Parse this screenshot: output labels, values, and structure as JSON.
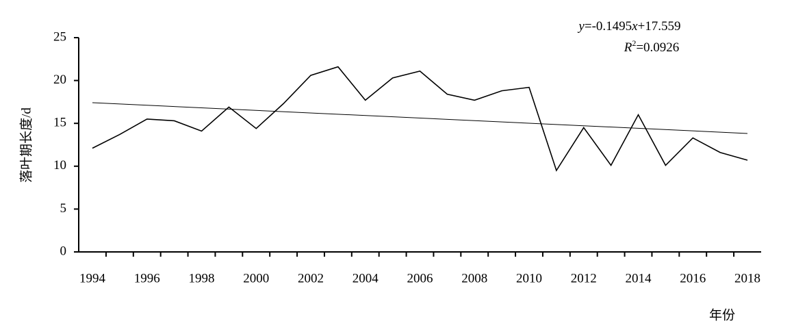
{
  "chart_data": {
    "type": "line",
    "y_label": "落叶期长度/d",
    "x_label": "年份",
    "categories": [
      1994,
      null,
      1996,
      null,
      1998,
      null,
      2000,
      null,
      2002,
      null,
      2004,
      null,
      2006,
      null,
      2008,
      null,
      2010,
      null,
      2012,
      null,
      2014,
      null,
      2016,
      null,
      2018
    ],
    "series": [
      {
        "color": "#000000",
        "values": [
          12.1,
          13.7,
          15.5,
          15.3,
          14.1,
          16.9,
          14.4,
          17.3,
          20.6,
          21.6,
          17.7,
          20.3,
          21.1,
          18.4,
          17.7,
          18.8,
          19.2,
          9.5,
          14.5,
          10.1,
          16.0,
          10.1,
          13.3,
          11.6,
          10.7
        ]
      }
    ],
    "trendline": {
      "slope": -0.1495,
      "intercept": 17.559,
      "color": "#000000"
    },
    "equation": {
      "y": "y",
      "coef": "=-0.1495",
      "x": "x",
      "const": "+17.559"
    },
    "r_squared": {
      "r": "R",
      "power": "2",
      "value": "=0.0926"
    },
    "ylim": [
      0,
      25
    ],
    "yticks": [
      0,
      5,
      10,
      15,
      20,
      25
    ],
    "grid": false
  }
}
